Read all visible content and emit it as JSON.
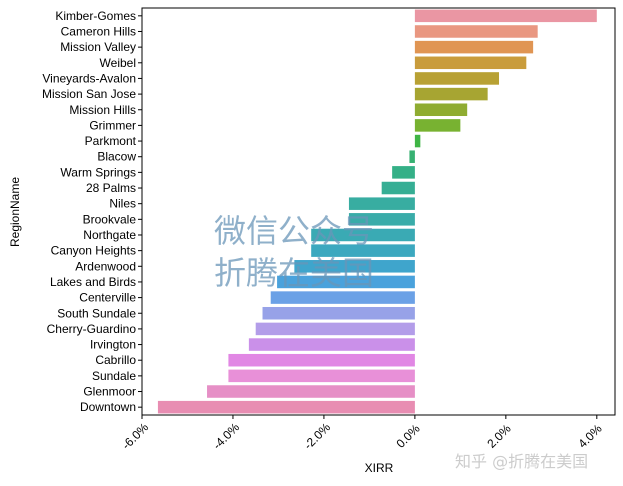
{
  "chart_data": {
    "type": "bar",
    "orientation": "horizontal",
    "xlabel": "XIRR",
    "ylabel": "RegionName",
    "xlim": [
      -0.06,
      0.044
    ],
    "xticks": [
      -0.06,
      -0.04,
      -0.02,
      0.0,
      0.02,
      0.04
    ],
    "xtick_labels": [
      "-6.0%",
      "-4.0%",
      "-2.0%",
      "0.0%",
      "2.0%",
      "4.0%"
    ],
    "grid": false,
    "categories": [
      "Kimber-Gomes",
      "Cameron Hills",
      "Mission Valley",
      "Weibel",
      "Vineyards-Avalon",
      "Mission San Jose",
      "Mission Hills",
      "Grimmer",
      "Parkmont",
      "Blacow",
      "Warm Springs",
      "28 Palms",
      "Niles",
      "Brookvale",
      "Northgate",
      "Canyon Heights",
      "Ardenwood",
      "Lakes and Birds",
      "Centerville",
      "South Sundale",
      "Cherry-Guardino",
      "Irvington",
      "Cabrillo",
      "Sundale",
      "Glenmoor",
      "Downtown"
    ],
    "values": [
      0.04,
      0.027,
      0.026,
      0.0245,
      0.0185,
      0.016,
      0.0115,
      0.01,
      0.0012,
      -0.0012,
      -0.005,
      -0.0073,
      -0.0145,
      -0.0145,
      -0.0228,
      -0.0228,
      -0.0265,
      -0.0303,
      -0.0317,
      -0.0335,
      -0.035,
      -0.0365,
      -0.041,
      -0.041,
      -0.0457,
      -0.0565
    ],
    "colors": [
      "#ea96a3",
      "#e99781",
      "#e09553",
      "#c99c3c",
      "#b8a134",
      "#a7a532",
      "#8fac31",
      "#78b231",
      "#3fb545",
      "#37b172",
      "#35b087",
      "#36ae94",
      "#38ada1",
      "#3aaca9",
      "#3aaab4",
      "#3ca8bf",
      "#3fa5cc",
      "#4aa2dc",
      "#6ba1e6",
      "#97a2e8",
      "#b39de9",
      "#ca90e9",
      "#e187e4",
      "#e890d8",
      "#e68fc6",
      "#e88db2"
    ]
  },
  "watermark": {
    "line1": "微信公众号",
    "line2": "折腾在美国",
    "credit": "知乎 @折腾在美国"
  }
}
